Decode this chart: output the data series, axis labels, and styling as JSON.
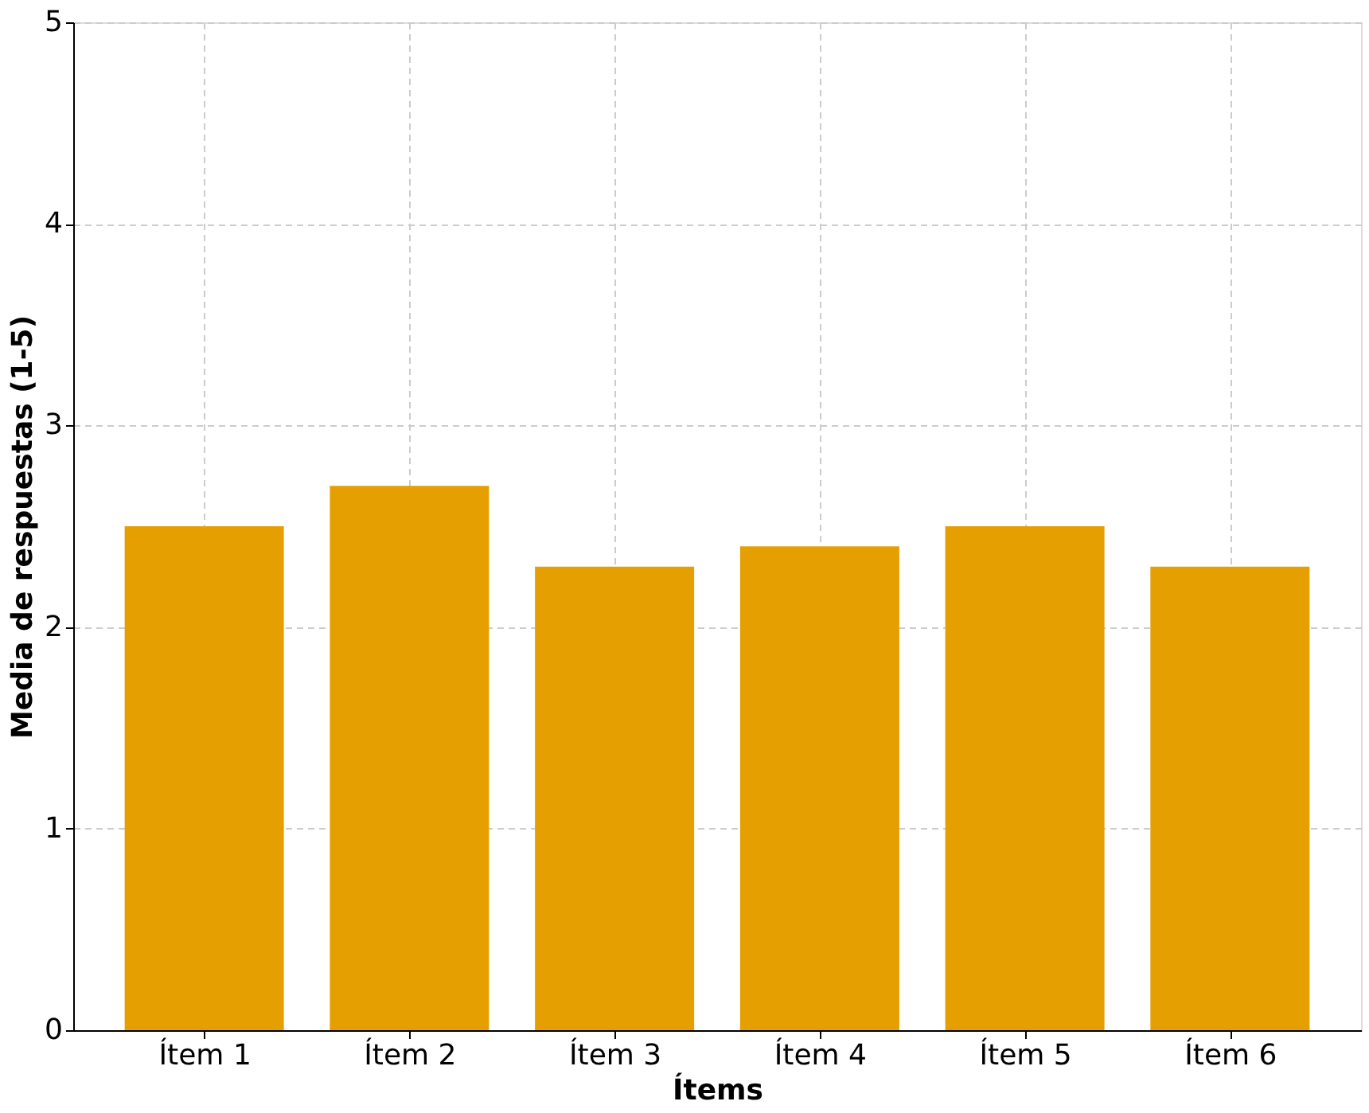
{
  "chart_data": {
    "type": "bar",
    "xlabel": "Ítems",
    "ylabel": "Media de respuestas (1-5)",
    "categories": [
      "Ítem 1",
      "Ítem 2",
      "Ítem 3",
      "Ítem 4",
      "Ítem 5",
      "Ítem 6"
    ],
    "values": [
      2.5,
      2.7,
      2.3,
      2.4,
      2.5,
      2.3
    ],
    "color": "#e69f00",
    "ylim": [
      0,
      5
    ],
    "yticks": [
      0,
      1,
      2,
      3,
      4,
      5
    ],
    "grid": true
  }
}
